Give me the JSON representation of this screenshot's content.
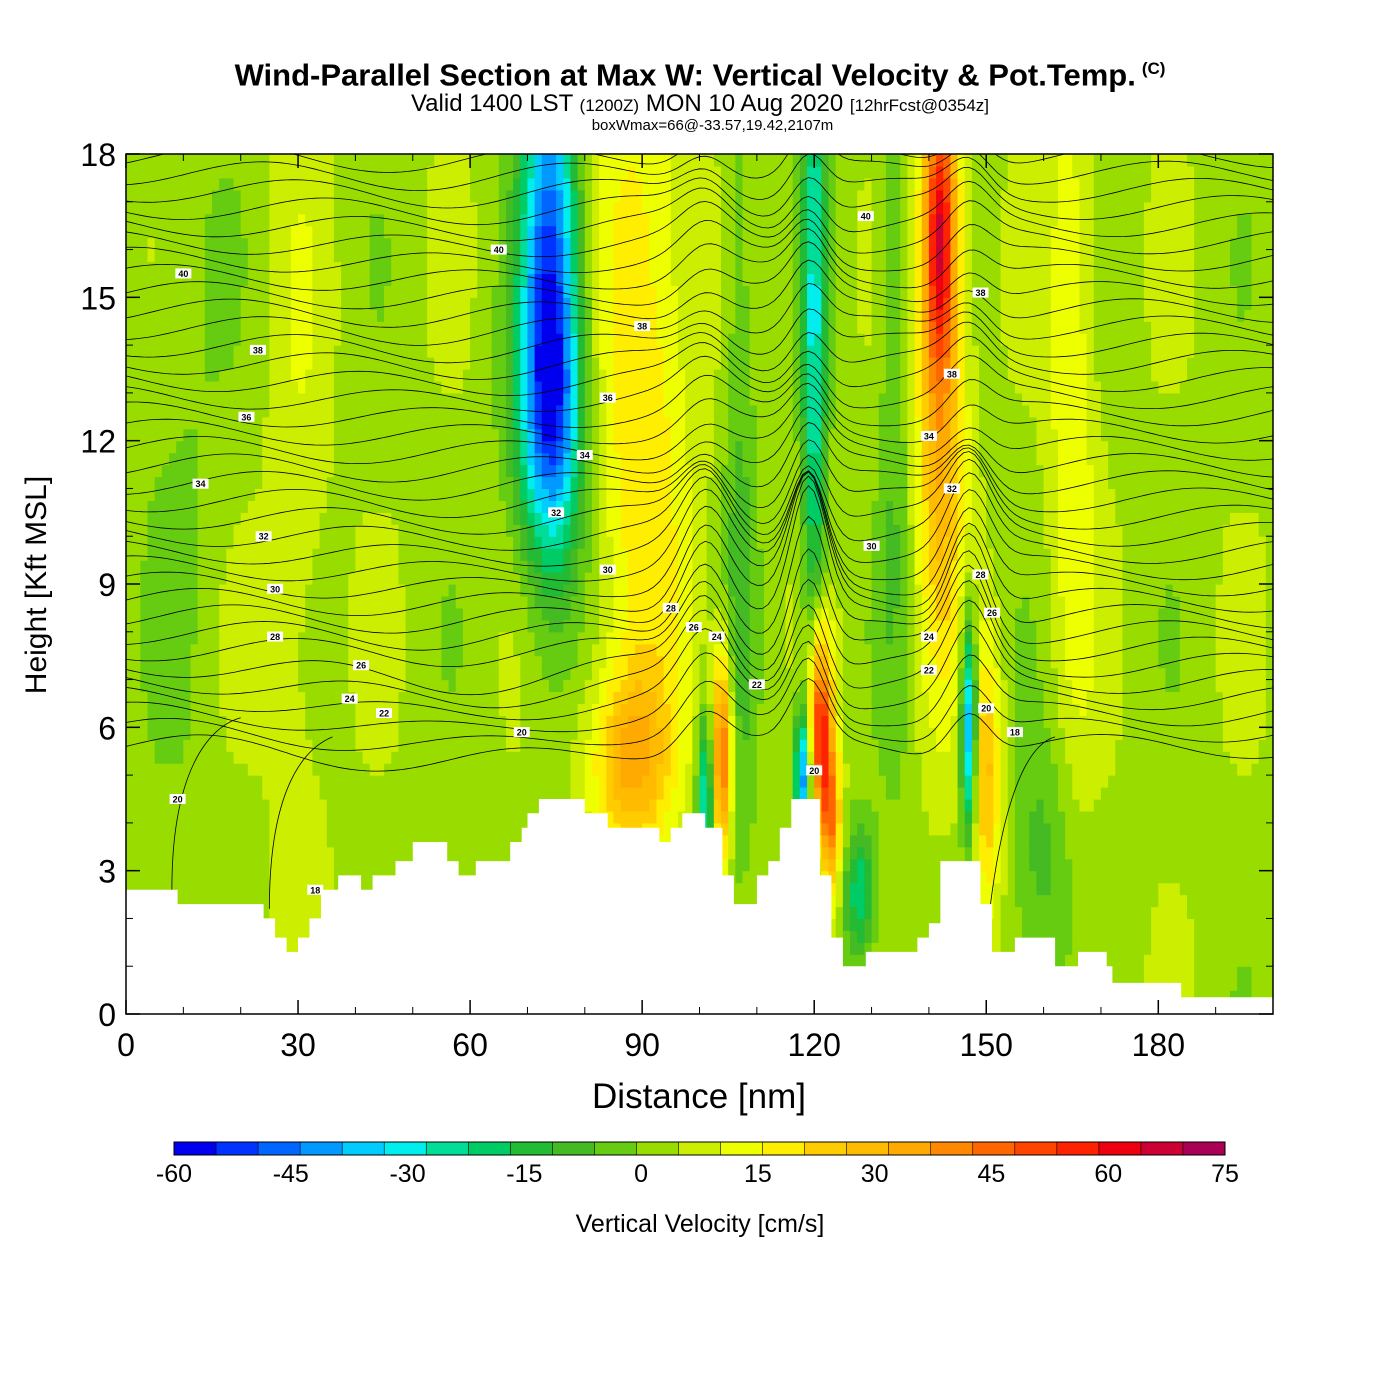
{
  "title": {
    "main": "Wind-Parallel Section at Max W: Vertical Velocity & Pot.Temp.",
    "copyright": "(C)",
    "valid_prefix": "Valid 1400 LST",
    "valid_utc": "(1200Z)",
    "valid_date": "MON 10 Aug 2020",
    "forecast": "[12hrFcst@0354z]",
    "box_info": "boxWmax=66@-33.57,19.42,2107m"
  },
  "chart_data": {
    "type": "heatmap",
    "xlabel": "Distance [nm]",
    "ylabel": "Height [Kft MSL]",
    "xlim": [
      0,
      200
    ],
    "ylim": [
      0,
      18
    ],
    "x_ticks": [
      0,
      30,
      60,
      90,
      120,
      150,
      180
    ],
    "y_ticks": [
      0,
      3,
      6,
      9,
      12,
      15,
      18
    ],
    "colorbar": {
      "label": "Vertical Velocity [cm/s]",
      "ticks": [
        -60,
        -45,
        -30,
        -15,
        0,
        15,
        30,
        45,
        60,
        75
      ],
      "colors": [
        "#0000ee",
        "#0033ff",
        "#0066ff",
        "#0099ff",
        "#00ccff",
        "#00eeee",
        "#00dd99",
        "#00cc66",
        "#22bb33",
        "#44bb22",
        "#66cc11",
        "#99dd00",
        "#ccee00",
        "#eeff00",
        "#ffee00",
        "#ffcc00",
        "#ffbb00",
        "#ffaa00",
        "#ff8800",
        "#ff6600",
        "#ff4400",
        "#ff2200",
        "#ee0011",
        "#cc0033",
        "#aa0055"
      ]
    },
    "theta_labels": [
      {
        "value": "40",
        "x": 10,
        "y": 15.5
      },
      {
        "value": "40",
        "x": 65,
        "y": 16.0
      },
      {
        "value": "40",
        "x": 129,
        "y": 16.7
      },
      {
        "value": "38",
        "x": 23,
        "y": 13.9
      },
      {
        "value": "38",
        "x": 90,
        "y": 14.4
      },
      {
        "value": "38",
        "x": 149,
        "y": 15.1
      },
      {
        "value": "38",
        "x": 144,
        "y": 13.4
      },
      {
        "value": "36",
        "x": 21,
        "y": 12.5
      },
      {
        "value": "36",
        "x": 84,
        "y": 12.9
      },
      {
        "value": "34",
        "x": 13,
        "y": 11.1
      },
      {
        "value": "34",
        "x": 80,
        "y": 11.7
      },
      {
        "value": "34",
        "x": 140,
        "y": 12.1
      },
      {
        "value": "32",
        "x": 24,
        "y": 10.0
      },
      {
        "value": "32",
        "x": 75,
        "y": 10.5
      },
      {
        "value": "32",
        "x": 144,
        "y": 11.0
      },
      {
        "value": "30",
        "x": 26,
        "y": 8.9
      },
      {
        "value": "30",
        "x": 84,
        "y": 9.3
      },
      {
        "value": "30",
        "x": 130,
        "y": 9.8
      },
      {
        "value": "28",
        "x": 26,
        "y": 7.9
      },
      {
        "value": "28",
        "x": 95,
        "y": 8.5
      },
      {
        "value": "28",
        "x": 149,
        "y": 9.2
      },
      {
        "value": "26",
        "x": 41,
        "y": 7.3
      },
      {
        "value": "26",
        "x": 99,
        "y": 8.1
      },
      {
        "value": "26",
        "x": 151,
        "y": 8.4
      },
      {
        "value": "24",
        "x": 39,
        "y": 6.6
      },
      {
        "value": "24",
        "x": 103,
        "y": 7.9
      },
      {
        "value": "24",
        "x": 140,
        "y": 7.9
      },
      {
        "value": "22",
        "x": 45,
        "y": 6.3
      },
      {
        "value": "22",
        "x": 110,
        "y": 6.9
      },
      {
        "value": "22",
        "x": 140,
        "y": 7.2
      },
      {
        "value": "20",
        "x": 69,
        "y": 5.9
      },
      {
        "value": "20",
        "x": 150,
        "y": 6.4
      },
      {
        "value": "20",
        "x": 9,
        "y": 4.5
      },
      {
        "value": "20",
        "x": 120,
        "y": 5.1
      },
      {
        "value": "18",
        "x": 155,
        "y": 5.9
      },
      {
        "value": "18",
        "x": 33,
        "y": 2.6
      }
    ]
  }
}
